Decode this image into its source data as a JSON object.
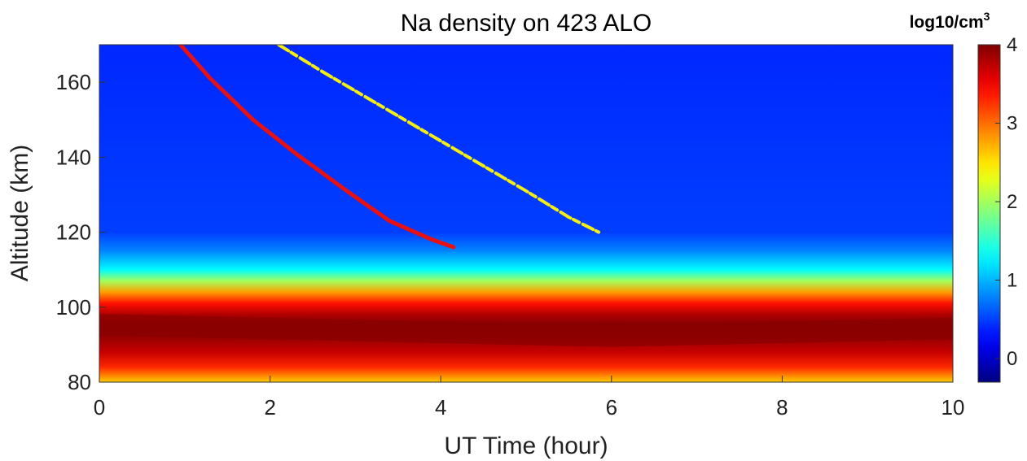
{
  "chart_data": {
    "type": "heatmap",
    "title": "Na density on 423 ALO",
    "xlabel": "UT Time (hour)",
    "ylabel": "Altitude (km)",
    "xlim": [
      0,
      10
    ],
    "ylim": [
      80,
      170
    ],
    "x_ticks": [
      0,
      2,
      4,
      6,
      8,
      10
    ],
    "y_ticks": [
      80,
      100,
      120,
      140,
      160
    ],
    "colorbar": {
      "label_base": "log10/cm",
      "label_exponent": "3",
      "range": [
        -0.3,
        4
      ],
      "ticks": [
        0,
        1,
        2,
        3,
        4
      ],
      "colormap": "jet"
    },
    "layer": {
      "description_values": "log10 Na density vs altitude",
      "profile": [
        {
          "altitude": 80,
          "value": 2.6
        },
        {
          "altitude": 84,
          "value": 3.3
        },
        {
          "altitude": 88,
          "value": 3.7
        },
        {
          "altitude": 92,
          "value": 3.9
        },
        {
          "altitude": 95,
          "value": 4.0
        },
        {
          "altitude": 98,
          "value": 3.8
        },
        {
          "altitude": 101,
          "value": 3.4
        },
        {
          "altitude": 104,
          "value": 2.8
        },
        {
          "altitude": 107,
          "value": 2.0
        },
        {
          "altitude": 110,
          "value": 1.3
        },
        {
          "altitude": 115,
          "value": 0.8
        },
        {
          "altitude": 120,
          "value": 0.5
        },
        {
          "altitude": 170,
          "value": 0.4
        }
      ],
      "peak_altitude_by_time": [
        {
          "x": 0,
          "y": 95
        },
        {
          "x": 2,
          "y": 94
        },
        {
          "x": 4,
          "y": 93
        },
        {
          "x": 6,
          "y": 92
        },
        {
          "x": 8,
          "y": 93
        },
        {
          "x": 10,
          "y": 94
        }
      ]
    },
    "series": [
      {
        "color": "#e81010",
        "points": [
          {
            "x": 0.95,
            "y": 170
          },
          {
            "x": 1.3,
            "y": 161
          },
          {
            "x": 1.8,
            "y": 150
          },
          {
            "x": 2.3,
            "y": 141
          },
          {
            "x": 2.9,
            "y": 131
          },
          {
            "x": 3.4,
            "y": 123
          },
          {
            "x": 3.9,
            "y": 118
          },
          {
            "x": 4.15,
            "y": 116
          }
        ]
      },
      {
        "color": "#f5ee10",
        "points": [
          {
            "x": 2.1,
            "y": 170
          },
          {
            "x": 2.6,
            "y": 163
          },
          {
            "x": 3.2,
            "y": 155
          },
          {
            "x": 3.8,
            "y": 147
          },
          {
            "x": 4.4,
            "y": 139
          },
          {
            "x": 5.0,
            "y": 131
          },
          {
            "x": 5.5,
            "y": 124
          },
          {
            "x": 5.85,
            "y": 120
          }
        ]
      }
    ]
  }
}
